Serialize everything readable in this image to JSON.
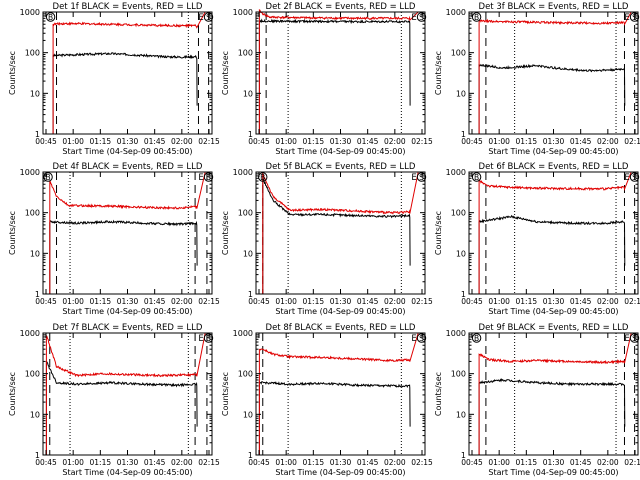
{
  "colors": {
    "events": "#000000",
    "lld": "#e00000",
    "axis": "#000000",
    "background": "#ffffff"
  },
  "shared": {
    "ylabel": "Counts/sec",
    "xlabel": "Start Time (04-Sep-09 00:45:00)",
    "xticks": [
      "00:45",
      "01:00",
      "01:15",
      "01:30",
      "01:45",
      "02:00",
      "02:15"
    ],
    "yticks": [
      "1",
      "10",
      "100",
      "1000"
    ],
    "flags": [
      "E",
      "S"
    ],
    "xrange_min": [
      0,
      100
    ],
    "ylim": [
      1,
      1000
    ],
    "yscale": "log",
    "series_names": [
      "Events",
      "LLD"
    ]
  },
  "chart_data": [
    {
      "type": "line",
      "title": "Det 1f BLACK = Events, RED = LLD",
      "flag_B": 4.5,
      "data_start": 6,
      "data_end": 91,
      "dashed": [
        8,
        92,
        98
      ],
      "dotted": [
        null,
        86
      ],
      "series": [
        {
          "name": "Events",
          "anchors": [
            [
              6,
              85
            ],
            [
              15,
              88
            ],
            [
              30,
              92
            ],
            [
              40,
              95
            ],
            [
              55,
              88
            ],
            [
              70,
              80
            ],
            [
              82,
              78
            ],
            [
              91,
              80
            ]
          ]
        },
        {
          "name": "LLD",
          "anchors": [
            [
              6,
              500
            ],
            [
              12,
              520
            ],
            [
              30,
              510
            ],
            [
              50,
              490
            ],
            [
              65,
              470
            ],
            [
              80,
              460
            ],
            [
              91,
              460
            ]
          ],
          "tail": [
            96,
            1000
          ]
        }
      ]
    },
    {
      "type": "line",
      "title": "Det 2f BLACK = Events, RED = LLD",
      "flag_B": null,
      "data_start": 2,
      "data_end": 91,
      "dashed": [
        6,
        null,
        null
      ],
      "dotted": [
        19,
        86
      ],
      "series": [
        {
          "name": "Events",
          "anchors": [
            [
              6,
              600
            ],
            [
              30,
              590
            ],
            [
              60,
              580
            ],
            [
              91,
              580
            ]
          ]
        },
        {
          "name": "LLD",
          "anchors": [
            [
              0,
              1300
            ],
            [
              4,
              900
            ],
            [
              8,
              750
            ],
            [
              30,
              720
            ],
            [
              60,
              700
            ],
            [
              91,
              700
            ]
          ],
          "tail": [
            96,
            1000
          ]
        }
      ]
    },
    {
      "type": "line",
      "title": "Det 3f BLACK = Events, RED = LLD",
      "flag_B": 4.5,
      "data_start": 6,
      "data_end": 92,
      "dashed": [
        10,
        92,
        98
      ],
      "dotted": [
        27,
        87
      ],
      "series": [
        {
          "name": "Events",
          "anchors": [
            [
              6,
              50
            ],
            [
              20,
              42
            ],
            [
              40,
              48
            ],
            [
              55,
              40
            ],
            [
              70,
              36
            ],
            [
              85,
              38
            ],
            [
              92,
              40
            ]
          ]
        },
        {
          "name": "LLD",
          "anchors": [
            [
              6,
              600
            ],
            [
              20,
              580
            ],
            [
              40,
              560
            ],
            [
              60,
              540
            ],
            [
              80,
              530
            ],
            [
              92,
              550
            ]
          ],
          "tail": [
            96,
            1000
          ]
        }
      ]
    },
    {
      "type": "line",
      "title": "Det 4f BLACK = Events, RED = LLD",
      "flag_B": 3,
      "data_start": 4,
      "data_end": 91,
      "dashed": [
        8,
        90,
        97
      ],
      "dotted": [
        16,
        86
      ],
      "series": [
        {
          "name": "Events",
          "anchors": [
            [
              4,
              60
            ],
            [
              20,
              55
            ],
            [
              40,
              60
            ],
            [
              60,
              55
            ],
            [
              80,
              52
            ],
            [
              91,
              55
            ]
          ]
        },
        {
          "name": "LLD",
          "anchors": [
            [
              4,
              600
            ],
            [
              8,
              250
            ],
            [
              15,
              150
            ],
            [
              40,
              145
            ],
            [
              60,
              135
            ],
            [
              80,
              130
            ],
            [
              91,
              140
            ]
          ],
          "tail": [
            96,
            1000
          ]
        }
      ]
    },
    {
      "type": "line",
      "title": "Det 5f BLACK = Events, RED = LLD",
      "flag_B": 4,
      "data_start": 4,
      "data_end": 91,
      "dashed": [
        4,
        null,
        null
      ],
      "dotted": [
        19,
        86
      ],
      "series": [
        {
          "name": "Events",
          "anchors": [
            [
              4,
              700
            ],
            [
              10,
              200
            ],
            [
              20,
              90
            ],
            [
              40,
              90
            ],
            [
              60,
              85
            ],
            [
              80,
              80
            ],
            [
              91,
              85
            ]
          ]
        },
        {
          "name": "LLD",
          "anchors": [
            [
              4,
              900
            ],
            [
              10,
              250
            ],
            [
              20,
              115
            ],
            [
              40,
              120
            ],
            [
              60,
              110
            ],
            [
              80,
              100
            ],
            [
              91,
              105
            ]
          ],
          "tail": [
            96,
            1000
          ]
        }
      ]
    },
    {
      "type": "line",
      "title": "Det 6f BLACK = Events, RED = LLD",
      "flag_B": 4.5,
      "data_start": 6,
      "data_end": 92,
      "dashed": [
        10,
        92,
        98
      ],
      "dotted": [
        27,
        87
      ],
      "series": [
        {
          "name": "Events",
          "anchors": [
            [
              6,
              60
            ],
            [
              25,
              80
            ],
            [
              40,
              60
            ],
            [
              60,
              55
            ],
            [
              80,
              55
            ],
            [
              92,
              60
            ]
          ]
        },
        {
          "name": "LLD",
          "anchors": [
            [
              6,
              600
            ],
            [
              12,
              450
            ],
            [
              25,
              420
            ],
            [
              40,
              400
            ],
            [
              60,
              390
            ],
            [
              80,
              385
            ],
            [
              92,
              420
            ]
          ],
          "tail": [
            96,
            1000
          ]
        }
      ]
    },
    {
      "type": "line",
      "title": "Det 7f BLACK = Events, RED = LLD",
      "flag_B": null,
      "data_start": 2,
      "data_end": 91,
      "dashed": [
        4,
        90,
        97
      ],
      "dotted": [
        16,
        86
      ],
      "series": [
        {
          "name": "Events",
          "anchors": [
            [
              2,
              200
            ],
            [
              8,
              60
            ],
            [
              20,
              55
            ],
            [
              40,
              60
            ],
            [
              60,
              55
            ],
            [
              80,
              52
            ],
            [
              91,
              55
            ]
          ]
        },
        {
          "name": "LLD",
          "anchors": [
            [
              2,
              900
            ],
            [
              8,
              150
            ],
            [
              20,
              90
            ],
            [
              35,
              100
            ],
            [
              50,
              95
            ],
            [
              70,
              90
            ],
            [
              91,
              95
            ]
          ],
          "tail": [
            96,
            1000
          ]
        }
      ]
    },
    {
      "type": "line",
      "title": "Det 8f BLACK = Events, RED = LLD",
      "flag_B": null,
      "data_start": 2,
      "data_end": 91,
      "dashed": [
        4,
        null,
        null
      ],
      "dotted": [
        19,
        86
      ],
      "series": [
        {
          "name": "Events",
          "anchors": [
            [
              4,
              60
            ],
            [
              20,
              55
            ],
            [
              40,
              58
            ],
            [
              60,
              52
            ],
            [
              80,
              50
            ],
            [
              91,
              50
            ]
          ]
        },
        {
          "name": "LLD",
          "anchors": [
            [
              4,
              400
            ],
            [
              10,
              300
            ],
            [
              20,
              260
            ],
            [
              40,
              250
            ],
            [
              60,
              230
            ],
            [
              80,
              210
            ],
            [
              91,
              220
            ]
          ],
          "tail": [
            96,
            1000
          ]
        }
      ]
    },
    {
      "type": "line",
      "title": "Det 9f BLACK = Events, RED = LLD",
      "flag_B": 4.5,
      "data_start": 6,
      "data_end": 92,
      "dashed": [
        10,
        92,
        98
      ],
      "dotted": [
        27,
        87
      ],
      "series": [
        {
          "name": "Events",
          "anchors": [
            [
              6,
              60
            ],
            [
              20,
              70
            ],
            [
              40,
              60
            ],
            [
              60,
              55
            ],
            [
              80,
              55
            ],
            [
              92,
              55
            ]
          ]
        },
        {
          "name": "LLD",
          "anchors": [
            [
              6,
              300
            ],
            [
              12,
              220
            ],
            [
              25,
              200
            ],
            [
              40,
              210
            ],
            [
              60,
              200
            ],
            [
              80,
              190
            ],
            [
              92,
              200
            ]
          ],
          "tail": [
            96,
            1000
          ]
        }
      ]
    }
  ]
}
